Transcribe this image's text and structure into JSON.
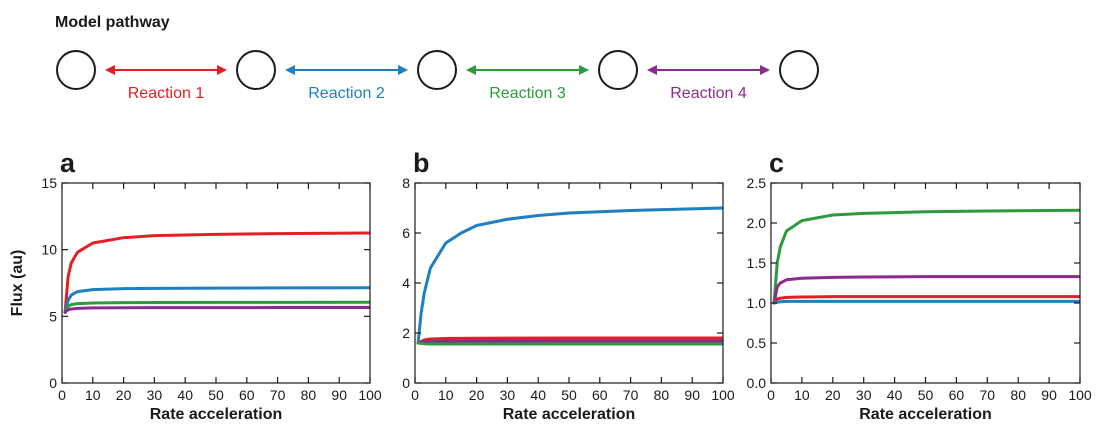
{
  "pathway": {
    "title": "Model pathway",
    "node_count": 5,
    "reactions": [
      {
        "label": "Reaction 1",
        "color": "#e31f26"
      },
      {
        "label": "Reaction 2",
        "color": "#1f7fc1"
      },
      {
        "label": "Reaction 3",
        "color": "#2e9a3f"
      },
      {
        "label": "Reaction 4",
        "color": "#8a2c8f"
      }
    ]
  },
  "colors": {
    "reaction_1": "#e31f26",
    "reaction_2": "#1f7fc1",
    "reaction_3": "#2e9a3f",
    "reaction_4": "#8a2c8f",
    "axis": "#1a1a1a"
  },
  "chart_data": [
    {
      "panel": "a",
      "type": "line",
      "xlabel": "Rate acceleration",
      "ylabel": "Flux (au)",
      "xlim": [
        0,
        100
      ],
      "ylim": [
        0,
        15
      ],
      "xticks": [
        0,
        10,
        20,
        30,
        40,
        50,
        60,
        70,
        80,
        90,
        100
      ],
      "yticks": [
        0,
        5,
        10,
        15
      ],
      "series": [
        {
          "color": "#e31f26",
          "x": [
            1,
            2,
            3,
            5,
            10,
            20,
            30,
            50,
            70,
            100
          ],
          "y": [
            5.3,
            8.0,
            9.0,
            9.8,
            10.5,
            10.9,
            11.05,
            11.15,
            11.2,
            11.25
          ]
        },
        {
          "color": "#1f7fc1",
          "x": [
            1,
            2,
            3,
            5,
            10,
            20,
            30,
            50,
            70,
            100
          ],
          "y": [
            5.3,
            6.2,
            6.6,
            6.85,
            7.0,
            7.08,
            7.1,
            7.12,
            7.13,
            7.14
          ]
        },
        {
          "color": "#2e9a3f",
          "x": [
            1,
            2,
            3,
            5,
            10,
            20,
            30,
            50,
            70,
            100
          ],
          "y": [
            5.3,
            5.75,
            5.88,
            5.95,
            6.0,
            6.03,
            6.04,
            6.05,
            6.05,
            6.06
          ]
        },
        {
          "color": "#8a2c8f",
          "x": [
            1,
            2,
            3,
            5,
            10,
            20,
            30,
            50,
            70,
            100
          ],
          "y": [
            5.3,
            5.5,
            5.55,
            5.6,
            5.63,
            5.64,
            5.65,
            5.65,
            5.66,
            5.66
          ]
        }
      ]
    },
    {
      "panel": "b",
      "type": "line",
      "xlabel": "Rate acceleration",
      "ylabel": "",
      "xlim": [
        0,
        100
      ],
      "ylim": [
        0,
        8
      ],
      "xticks": [
        0,
        10,
        20,
        30,
        40,
        50,
        60,
        70,
        80,
        90,
        100
      ],
      "yticks": [
        0,
        2,
        4,
        6,
        8
      ],
      "series": [
        {
          "color": "#1f7fc1",
          "x": [
            1,
            2,
            3,
            5,
            10,
            15,
            20,
            30,
            40,
            50,
            70,
            100
          ],
          "y": [
            1.6,
            2.8,
            3.6,
            4.6,
            5.6,
            6.0,
            6.3,
            6.55,
            6.7,
            6.8,
            6.9,
            7.0
          ]
        },
        {
          "color": "#e31f26",
          "x": [
            1,
            3,
            5,
            10,
            20,
            50,
            100
          ],
          "y": [
            1.6,
            1.72,
            1.76,
            1.78,
            1.79,
            1.8,
            1.8
          ]
        },
        {
          "color": "#8a2c8f",
          "x": [
            1,
            3,
            5,
            10,
            20,
            50,
            100
          ],
          "y": [
            1.6,
            1.64,
            1.66,
            1.67,
            1.68,
            1.68,
            1.68
          ]
        },
        {
          "color": "#2e9a3f",
          "x": [
            1,
            3,
            5,
            10,
            20,
            50,
            100
          ],
          "y": [
            1.6,
            1.57,
            1.56,
            1.56,
            1.56,
            1.56,
            1.56
          ]
        }
      ]
    },
    {
      "panel": "c",
      "type": "line",
      "xlabel": "Rate acceleration",
      "ylabel": "",
      "xlim": [
        0,
        100
      ],
      "ylim": [
        0,
        2.5
      ],
      "xticks": [
        0,
        10,
        20,
        30,
        40,
        50,
        60,
        70,
        80,
        90,
        100
      ],
      "yticks": [
        0.0,
        0.5,
        1.0,
        1.5,
        2.0,
        2.5
      ],
      "ytick_labels": [
        "0.0",
        "0.5",
        "1.0",
        "1.5",
        "2.0",
        "2.5"
      ],
      "series": [
        {
          "color": "#2e9a3f",
          "x": [
            1,
            2,
            3,
            5,
            10,
            20,
            30,
            50,
            70,
            100
          ],
          "y": [
            1.0,
            1.5,
            1.7,
            1.9,
            2.03,
            2.1,
            2.12,
            2.14,
            2.15,
            2.16
          ]
        },
        {
          "color": "#8a2c8f",
          "x": [
            1,
            2,
            3,
            5,
            10,
            20,
            30,
            50,
            70,
            100
          ],
          "y": [
            1.0,
            1.2,
            1.25,
            1.29,
            1.31,
            1.32,
            1.325,
            1.33,
            1.33,
            1.33
          ]
        },
        {
          "color": "#e31f26",
          "x": [
            1,
            2,
            3,
            5,
            10,
            20,
            50,
            100
          ],
          "y": [
            1.0,
            1.05,
            1.06,
            1.07,
            1.075,
            1.08,
            1.08,
            1.08
          ]
        },
        {
          "color": "#1f7fc1",
          "x": [
            1,
            2,
            3,
            5,
            10,
            20,
            50,
            100
          ],
          "y": [
            1.0,
            1.01,
            1.015,
            1.02,
            1.02,
            1.02,
            1.02,
            1.02
          ]
        }
      ]
    }
  ]
}
